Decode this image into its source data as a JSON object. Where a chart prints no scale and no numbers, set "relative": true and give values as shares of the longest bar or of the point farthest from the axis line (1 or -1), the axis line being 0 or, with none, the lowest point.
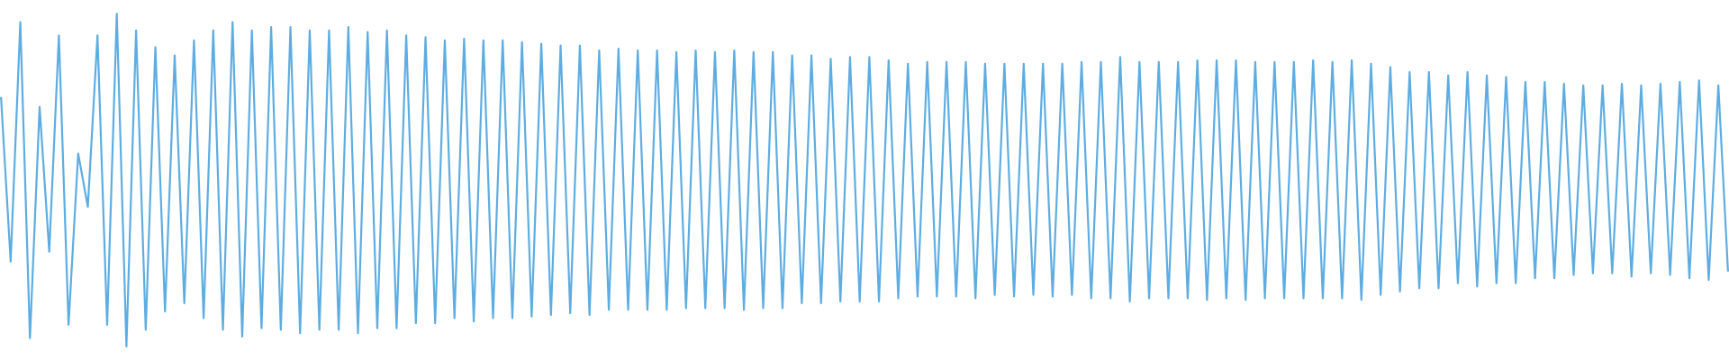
{
  "chart_data": {
    "type": "line",
    "relative": true,
    "tick_labels": false,
    "categories": [
      null,
      null,
      null,
      null,
      null,
      null,
      null,
      null,
      null,
      null,
      null,
      null,
      null,
      null,
      null,
      null,
      null,
      null,
      null,
      null,
      null,
      null,
      null,
      null,
      null,
      null,
      null,
      null,
      null,
      null,
      null,
      null,
      null,
      null,
      null,
      null,
      null,
      null,
      null,
      null,
      null,
      null,
      null,
      null,
      null,
      null,
      null,
      null,
      null,
      null,
      null,
      null,
      null,
      null,
      null,
      null,
      null,
      null,
      null,
      null,
      null,
      null,
      null,
      null,
      null,
      null,
      null,
      null,
      null,
      null,
      null,
      null,
      null,
      null,
      null,
      null,
      null,
      null,
      null,
      null,
      null,
      null,
      null,
      null,
      null,
      null,
      null,
      null,
      null,
      null,
      null,
      null,
      null,
      null,
      null,
      null,
      null,
      null,
      null,
      null,
      null,
      null,
      null,
      null,
      null,
      null,
      null,
      null,
      null,
      null,
      null,
      null,
      null,
      null,
      null,
      null,
      null,
      null,
      null,
      null,
      null,
      null,
      null,
      null,
      null,
      null,
      null,
      null,
      null,
      null,
      null,
      null,
      null,
      null,
      null,
      null,
      null,
      null,
      null,
      null,
      null,
      null,
      null,
      null,
      null,
      null,
      null,
      null,
      null,
      null,
      null,
      null,
      null,
      null,
      null,
      null,
      null,
      null,
      null,
      null,
      null,
      null,
      null,
      null,
      null,
      null,
      null,
      null,
      null,
      null,
      null,
      null,
      null,
      null,
      null,
      null,
      null,
      null,
      null,
      null
    ],
    "series": [
      {
        "color": "#5dade2",
        "values": [
          0.75,
          0.255,
          0.975,
          0.025,
          0.72,
          0.285,
          0.935,
          0.065,
          0.58,
          0.42,
          0.935,
          0.065,
          1,
          0,
          0.95,
          0.05,
          0.9,
          0.105,
          0.875,
          0.13,
          0.92,
          0.085,
          0.95,
          0.05,
          0.975,
          0.03,
          0.95,
          0.055,
          0.96,
          0.05,
          0.96,
          0.04,
          0.95,
          0.05,
          0.95,
          0.05,
          0.96,
          0.04,
          0.945,
          0.055,
          0.95,
          0.055,
          0.935,
          0.07,
          0.93,
          0.07,
          0.92,
          0.085,
          0.925,
          0.075,
          0.92,
          0.085,
          0.92,
          0.085,
          0.915,
          0.09,
          0.91,
          0.095,
          0.905,
          0.1,
          0.905,
          0.095,
          0.89,
          0.11,
          0.895,
          0.11,
          0.89,
          0.11,
          0.89,
          0.11,
          0.885,
          0.115,
          0.89,
          0.115,
          0.885,
          0.115,
          0.89,
          0.11,
          0.885,
          0.115,
          0.885,
          0.115,
          0.875,
          0.13,
          0.875,
          0.13,
          0.865,
          0.135,
          0.87,
          0.135,
          0.87,
          0.135,
          0.86,
          0.145,
          0.85,
          0.15,
          0.855,
          0.15,
          0.855,
          0.15,
          0.855,
          0.145,
          0.85,
          0.155,
          0.85,
          0.15,
          0.85,
          0.155,
          0.85,
          0.15,
          0.85,
          0.155,
          0.855,
          0.145,
          0.855,
          0.145,
          0.87,
          0.135,
          0.855,
          0.145,
          0.855,
          0.145,
          0.855,
          0.145,
          0.86,
          0.14,
          0.86,
          0.145,
          0.86,
          0.14,
          0.855,
          0.145,
          0.855,
          0.145,
          0.855,
          0.145,
          0.86,
          0.145,
          0.855,
          0.145,
          0.86,
          0.14,
          0.85,
          0.155,
          0.84,
          0.165,
          0.825,
          0.175,
          0.825,
          0.175,
          0.815,
          0.19,
          0.825,
          0.18,
          0.815,
          0.19,
          0.81,
          0.19,
          0.795,
          0.205,
          0.795,
          0.205,
          0.79,
          0.215,
          0.785,
          0.22,
          0.785,
          0.22,
          0.79,
          0.21,
          0.785,
          0.22,
          0.79,
          0.215,
          0.795,
          0.205,
          0.8,
          0.2,
          0.785,
          0.225
        ]
      }
    ]
  }
}
